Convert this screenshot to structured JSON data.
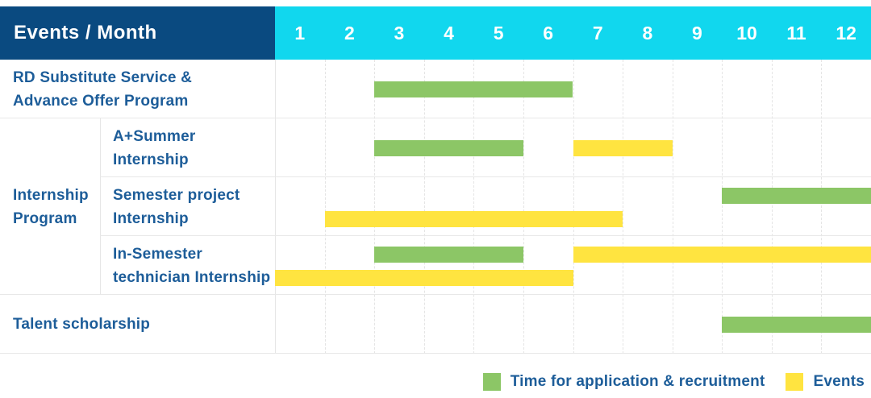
{
  "header": {
    "title": "Events / Month"
  },
  "colors": {
    "header_bg": "#0a4a80",
    "months_bg": "#11d7ee",
    "label_text": "#1d5d99",
    "green": "#8cc666",
    "yellow": "#ffe440"
  },
  "chart_data": {
    "type": "gantt",
    "title": "Events / Month",
    "x_axis": {
      "unit": "month",
      "ticks": [
        "1",
        "2",
        "3",
        "4",
        "5",
        "6",
        "7",
        "8",
        "9",
        "10",
        "11",
        "12"
      ],
      "range": [
        1,
        12
      ],
      "grid": "dashed-vertical"
    },
    "legend_position": "bottom-right",
    "legend": [
      {
        "name": "Time for application & recruitment",
        "color": "#8cc666",
        "series_key": "application"
      },
      {
        "name": "Events",
        "color": "#ffe440",
        "series_key": "events"
      }
    ],
    "rows": [
      {
        "group": null,
        "label": "RD Substitute Service & Advance Offer Program",
        "label_lines": [
          "RD Substitute Service &",
          "Advance Offer Program"
        ],
        "bars": [
          {
            "series": "application",
            "start_month": 3,
            "end_month": 6,
            "lane": "center"
          }
        ]
      },
      {
        "group": "Internship Program",
        "label": "A+Summer Internship",
        "label_lines": [
          "A+Summer",
          "Internship"
        ],
        "bars": [
          {
            "series": "application",
            "start_month": 3,
            "end_month": 5,
            "lane": "center"
          },
          {
            "series": "events",
            "start_month": 7,
            "end_month": 8,
            "lane": "center"
          }
        ]
      },
      {
        "group": "Internship Program",
        "label": "Semester project Internship",
        "label_lines": [
          "Semester project",
          "Internship"
        ],
        "bars": [
          {
            "series": "application",
            "start_month": 10,
            "end_month": 12,
            "lane": "upper"
          },
          {
            "series": "events",
            "start_month": 2,
            "end_month": 7,
            "lane": "lower"
          }
        ]
      },
      {
        "group": "Internship Program",
        "label": "In-Semester technician Internship",
        "label_lines": [
          "In-Semester",
          "technician Internship"
        ],
        "bars": [
          {
            "series": "application",
            "start_month": 3,
            "end_month": 5,
            "lane": "upper"
          },
          {
            "series": "events",
            "start_month": 7,
            "end_month": 12,
            "lane": "upper"
          },
          {
            "series": "events",
            "start_month": 1,
            "end_month": 6,
            "lane": "lower"
          }
        ]
      },
      {
        "group": null,
        "label": "Talent scholarship",
        "label_lines": [
          "Talent scholarship"
        ],
        "bars": [
          {
            "series": "application",
            "start_month": 10,
            "end_month": 12,
            "lane": "center"
          }
        ]
      }
    ],
    "group_label": "Internship Program",
    "group_label_lines": [
      "Internship",
      "Program"
    ]
  }
}
